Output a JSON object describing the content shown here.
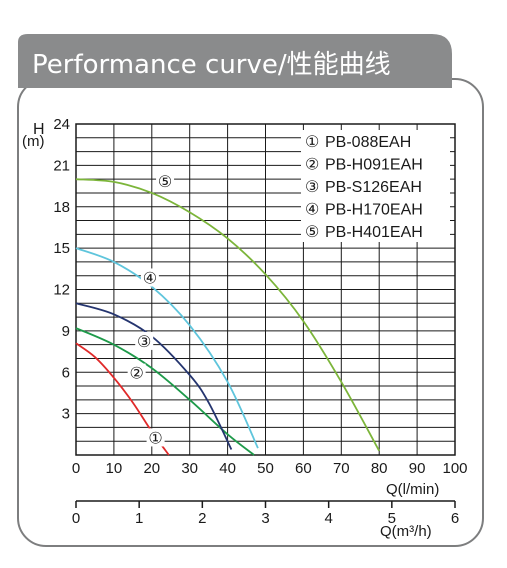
{
  "header": {
    "title": "Performance curve/性能曲线"
  },
  "colors": {
    "banner": "#8a8b8c",
    "panel_border": "#7d7e7f",
    "grid": "#1a1a1a",
    "text": "#1a1a1a"
  },
  "chart_data": {
    "type": "line",
    "ylabel_top": "H",
    "ylabel_unit": "(m)",
    "xlabel": "Q(l/min)",
    "x2label": "Q(m³/h)",
    "ylim": [
      0,
      24
    ],
    "xlim": [
      0,
      100
    ],
    "x2lim": [
      0,
      6
    ],
    "yticks": [
      3,
      6,
      9,
      12,
      15,
      18,
      21,
      24
    ],
    "xticks": [
      0,
      10,
      20,
      30,
      40,
      50,
      60,
      70,
      80,
      90,
      100
    ],
    "x2ticks": [
      0,
      1,
      2,
      3,
      4,
      5,
      6
    ],
    "grid": true,
    "legend_position": "top-right",
    "series": [
      {
        "name": "PB-088EAH",
        "marker": "①",
        "color": "#e02a2a",
        "x": [
          0,
          5,
          10,
          15,
          20,
          24.5
        ],
        "y": [
          8.1,
          7.1,
          5.6,
          3.8,
          1.7,
          0
        ],
        "label_at": [
          21,
          1.2
        ]
      },
      {
        "name": "PB-H091EAH",
        "marker": "②",
        "color": "#1e9a4a",
        "x": [
          0,
          10,
          20,
          30,
          40,
          47
        ],
        "y": [
          9.2,
          8.0,
          6.3,
          4.0,
          1.5,
          0
        ],
        "label_at": [
          16,
          5.9
        ]
      },
      {
        "name": "PB-S126EAH",
        "marker": "③",
        "color": "#25356f",
        "x": [
          0,
          10,
          20,
          30,
          35,
          41
        ],
        "y": [
          11.0,
          10.2,
          8.6,
          5.8,
          3.8,
          0.4
        ],
        "label_at": [
          18,
          8.2
        ]
      },
      {
        "name": "PB-H170EAH",
        "marker": "④",
        "color": "#5fc5dc",
        "x": [
          0,
          10,
          20,
          30,
          40,
          48
        ],
        "y": [
          15.0,
          14.0,
          12.2,
          9.4,
          5.3,
          0.5
        ],
        "label_at": [
          19.5,
          12.8
        ]
      },
      {
        "name": "PB-H401EAH",
        "marker": "⑤",
        "color": "#7cb53a",
        "x": [
          0,
          10,
          20,
          30,
          40,
          50,
          60,
          70,
          80
        ],
        "y": [
          20.0,
          19.8,
          19.0,
          17.6,
          15.7,
          13.1,
          9.7,
          5.3,
          0.3
        ],
        "label_at": [
          23.5,
          19.8
        ]
      }
    ]
  }
}
